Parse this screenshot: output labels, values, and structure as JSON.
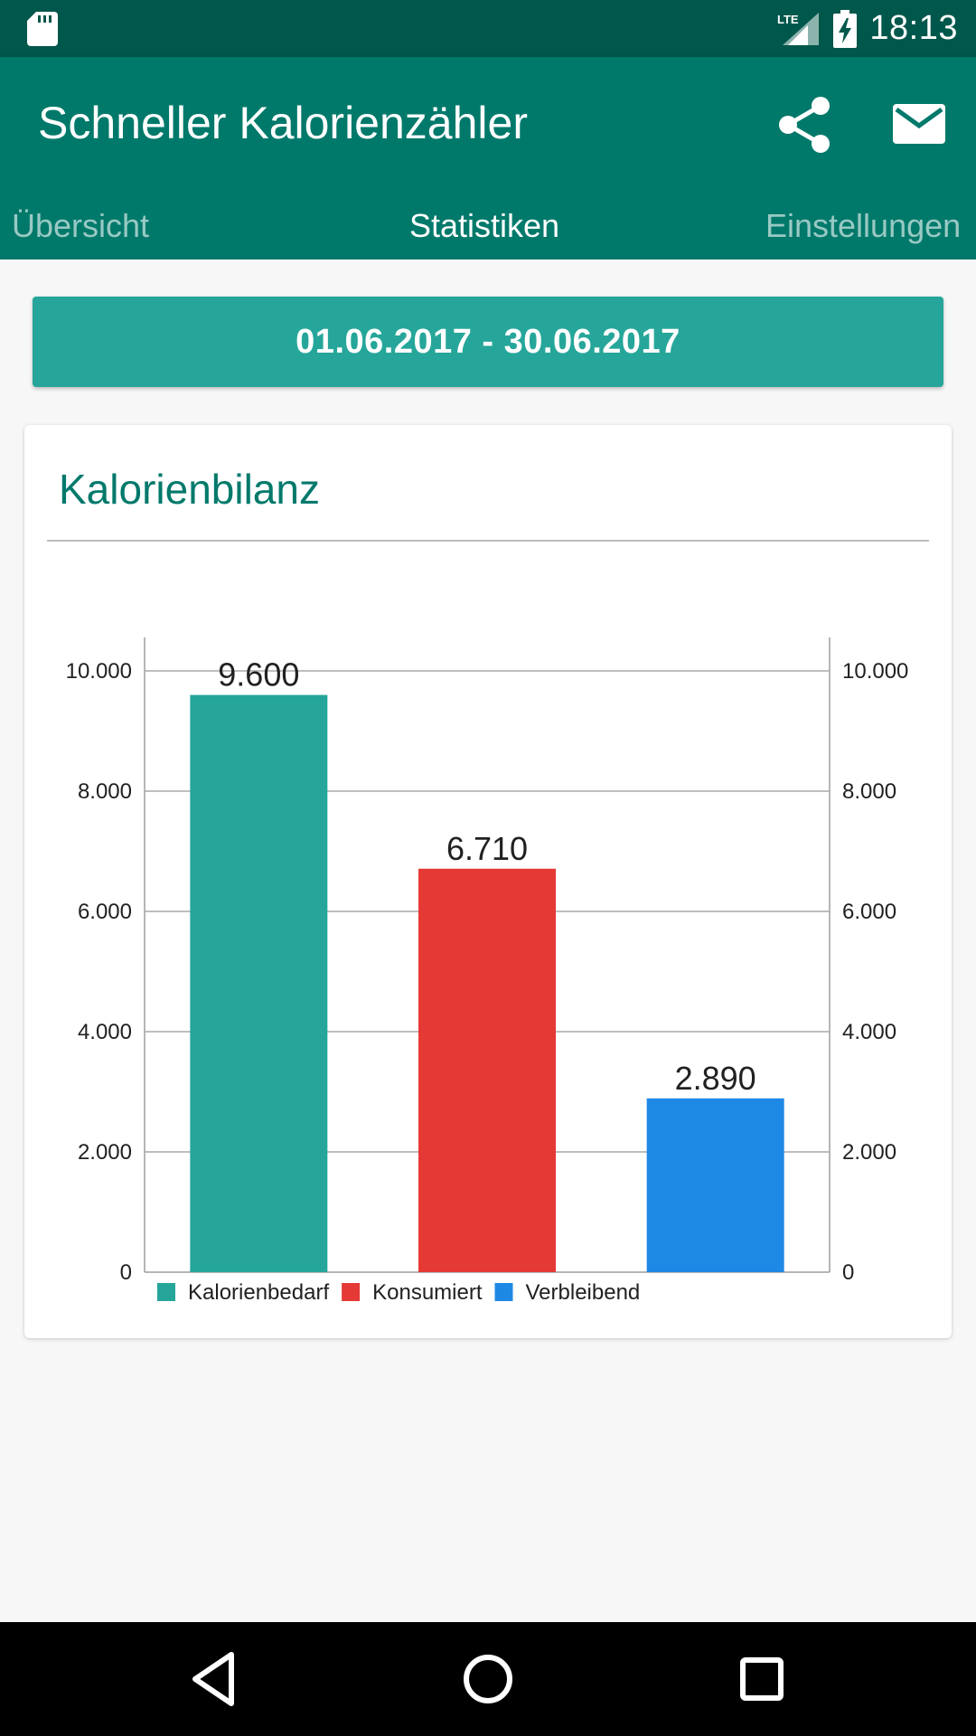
{
  "status_bar": {
    "time": "18:13",
    "network": "LTE",
    "icons": [
      "sd-card-icon",
      "signal-icon",
      "battery-charging-icon"
    ]
  },
  "app_bar": {
    "title": "Schneller Kalorienzähler",
    "actions": [
      "share-icon",
      "mail-icon"
    ]
  },
  "tabs": [
    {
      "label": "Übersicht",
      "active": false
    },
    {
      "label": "Statistiken",
      "active": true
    },
    {
      "label": "Einstellungen",
      "active": false
    }
  ],
  "date_range": "01.06.2017 - 30.06.2017",
  "card": {
    "title": "Kalorienbilanz"
  },
  "chart_data": {
    "type": "bar",
    "categories": [
      "Kalorienbedarf",
      "Konsumiert",
      "Verbleibend"
    ],
    "values": [
      9600,
      6710,
      2890
    ],
    "value_labels": [
      "9.600",
      "6.710",
      "2.890"
    ],
    "colors": [
      "#26a69a",
      "#e53935",
      "#1e88e5"
    ],
    "ylim": [
      0,
      10000
    ],
    "y_ticks": [
      0,
      2000,
      4000,
      6000,
      8000,
      10000
    ],
    "y_tick_labels": [
      "0",
      "2.000",
      "4.000",
      "6.000",
      "8.000",
      "10.000"
    ],
    "right_axis": true,
    "grid": true,
    "legend": {
      "placement": "bottom-left",
      "entries": [
        "Kalorienbedarf",
        "Konsumiert",
        "Verbleibend"
      ]
    },
    "title": "",
    "xlabel": "",
    "ylabel": ""
  },
  "nav_bar": {
    "buttons": [
      "back-icon",
      "home-icon",
      "recents-icon"
    ]
  }
}
